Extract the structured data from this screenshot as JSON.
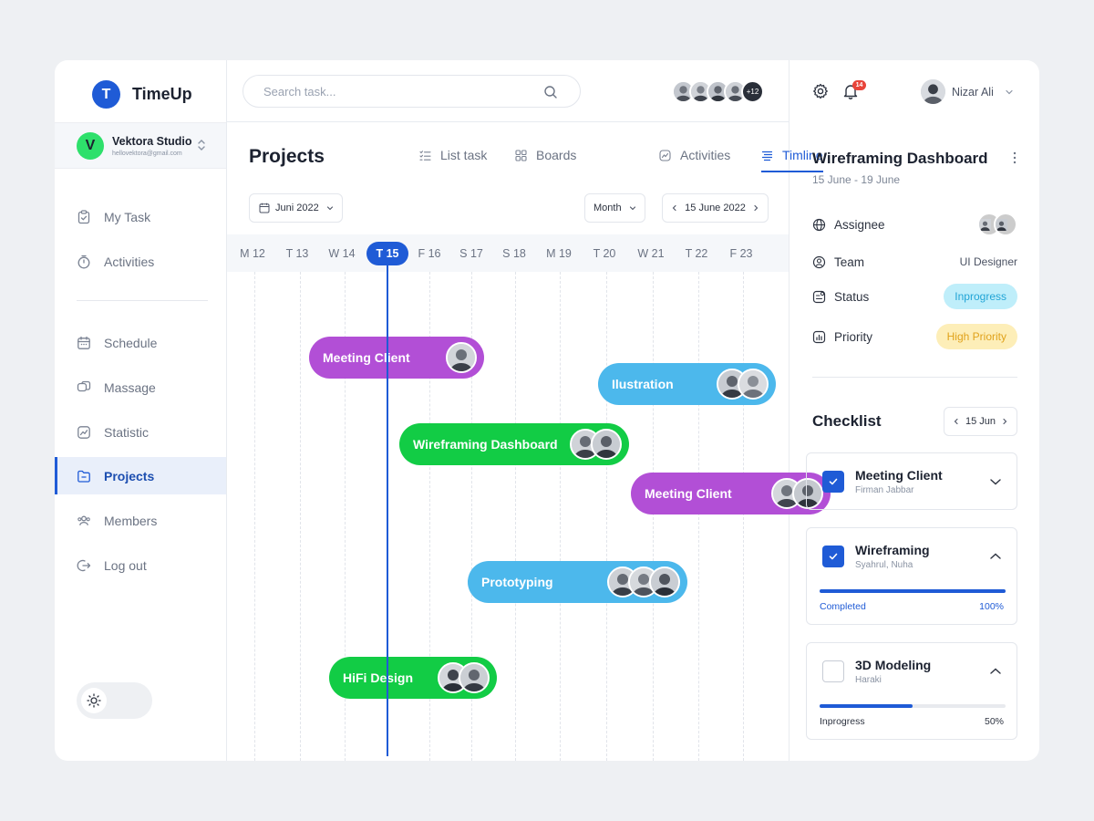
{
  "brand": {
    "name": "TimeUp",
    "logo_letter": "T"
  },
  "workspace": {
    "name": "Vektora Studio",
    "email": "hellovektora@gmail.com",
    "logo_letter": "V"
  },
  "sidebar": {
    "items": [
      {
        "label": "My Task",
        "icon": "clipboard-check-icon"
      },
      {
        "label": "Activities",
        "icon": "timer-icon"
      },
      {
        "label": "Schedule",
        "icon": "calendar-icon"
      },
      {
        "label": "Massage",
        "icon": "chat-icon"
      },
      {
        "label": "Statistic",
        "icon": "chart-icon"
      },
      {
        "label": "Projects",
        "icon": "folder-icon",
        "active": true
      },
      {
        "label": "Members",
        "icon": "users-icon"
      },
      {
        "label": "Log out",
        "icon": "logout-icon"
      }
    ]
  },
  "search": {
    "placeholder": "Search task..."
  },
  "team": {
    "more_count": "+12"
  },
  "projects": {
    "title": "Projects",
    "tabs": [
      {
        "label": "List task",
        "icon": "list-icon"
      },
      {
        "label": "Boards",
        "icon": "boards-icon"
      },
      {
        "label": "Activities",
        "icon": "activity-icon"
      },
      {
        "label": "Timline",
        "icon": "timeline-icon",
        "active": true
      }
    ],
    "month_picker": "Juni 2022",
    "view_select": "Month",
    "date_nav": "15 June 2022",
    "days": [
      "M 12",
      "T 13",
      "W 14",
      "T 15",
      "F 16",
      "S 17",
      "S 18",
      "M 19",
      "T 20",
      "W 21",
      "T 22",
      "F 23"
    ],
    "today": "T 15",
    "tasks": [
      {
        "label": "Meeting Client",
        "color": "#b24fd6",
        "avatars": 1
      },
      {
        "label": "Ilustration",
        "color": "#4cb8ec",
        "avatars": 2
      },
      {
        "label": "Wireframing Dashboard",
        "color": "#12cc45",
        "avatars": 2
      },
      {
        "label": "Meeting Client",
        "color": "#b24fd6",
        "avatars": 2
      },
      {
        "label": "Prototyping",
        "color": "#4cb8ec",
        "avatars": 3
      },
      {
        "label": "HiFi Design",
        "color": "#12cc45",
        "avatars": 2
      }
    ]
  },
  "notifications": {
    "count": "14"
  },
  "user": {
    "name": "Nizar Ali"
  },
  "detail": {
    "title": "Wireframing Dashboard",
    "dates": "15 June - 19 June",
    "assignee_label": "Assignee",
    "team_label": "Team",
    "team_value": "UI Designer",
    "status_label": "Status",
    "status_value": "Inprogress",
    "priority_label": "Priority",
    "priority_value": "High Priority"
  },
  "checklist": {
    "title": "Checklist",
    "date": "15 Jun",
    "items": [
      {
        "title": "Meeting Client",
        "assignees": "Firman Jabbar",
        "checked": true
      },
      {
        "title": "Wireframing",
        "assignees": "Syahrul, Nuha",
        "checked": true,
        "status": "Completed",
        "progress": "100%"
      },
      {
        "title": "3D Modeling",
        "assignees": "Haraki",
        "checked": false,
        "status": "Inprogress",
        "progress": "50%"
      }
    ]
  },
  "colors": {
    "accent": "#1f5bd6",
    "status_bg": "#bfeefa",
    "status_text": "#22a5d6",
    "priority_bg": "#fdeeb8",
    "priority_text": "#e0a21b"
  }
}
